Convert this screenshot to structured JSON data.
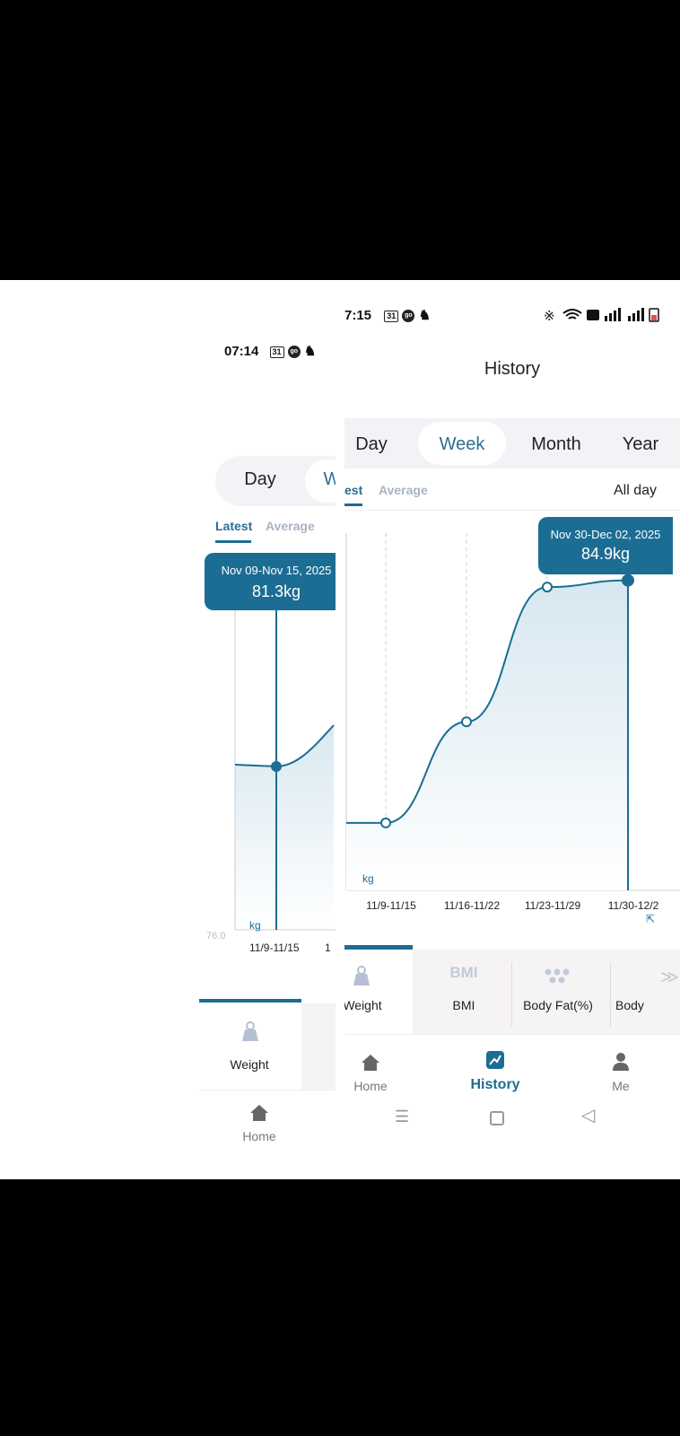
{
  "back": {
    "status_time": "07:14",
    "status_chip": "31",
    "status_go": "go",
    "tabs": [
      "Day",
      "W"
    ],
    "subtabs": {
      "latest": "Latest",
      "average": "Average"
    },
    "tooltip": {
      "range": "Nov 09-Nov 15, 2025",
      "value": "81.3kg"
    },
    "y_min_label": "76.0",
    "unit": "kg",
    "x_tick": "11/9-11/15",
    "x_tick_next": "1",
    "metric": {
      "label": "Weight"
    },
    "nav": {
      "home": "Home"
    }
  },
  "front": {
    "status_time": "7:15",
    "status_chip": "31",
    "status_go": "go",
    "header_title": "History",
    "tabs": {
      "day": "Day",
      "week": "Week",
      "month": "Month",
      "year": "Year",
      "active": "Week"
    },
    "subtabs": {
      "latest": "est",
      "average": "Average"
    },
    "filter": "All day",
    "tooltip": {
      "range": "Nov 30-Dec 02, 2025",
      "value": "84.9kg"
    },
    "unit": "kg",
    "metrics": [
      {
        "label": "Weight",
        "icon": "weight-icon"
      },
      {
        "label": "BMI",
        "icon_text": "BMI"
      },
      {
        "label": "Body Fat(%)",
        "icon": "dots-icon"
      },
      {
        "label": "Body",
        "icon": "body-icon"
      }
    ],
    "nav": {
      "home": "Home",
      "history": "History",
      "me": "Me"
    }
  },
  "chart_data": {
    "type": "area",
    "categories": [
      "11/9-11/15",
      "11/16-11/22",
      "11/23-11/29",
      "11/30-12/2"
    ],
    "values": [
      81.3,
      82.8,
      84.8,
      84.9
    ],
    "unit": "kg",
    "ylabel": "kg",
    "y_min": 76.0,
    "selected_index": 3,
    "color": "#1c6d93"
  },
  "colors": {
    "accent": "#1c6d93",
    "tab_bg": "#f3f2f6",
    "inactive": "#a9b3c2"
  }
}
